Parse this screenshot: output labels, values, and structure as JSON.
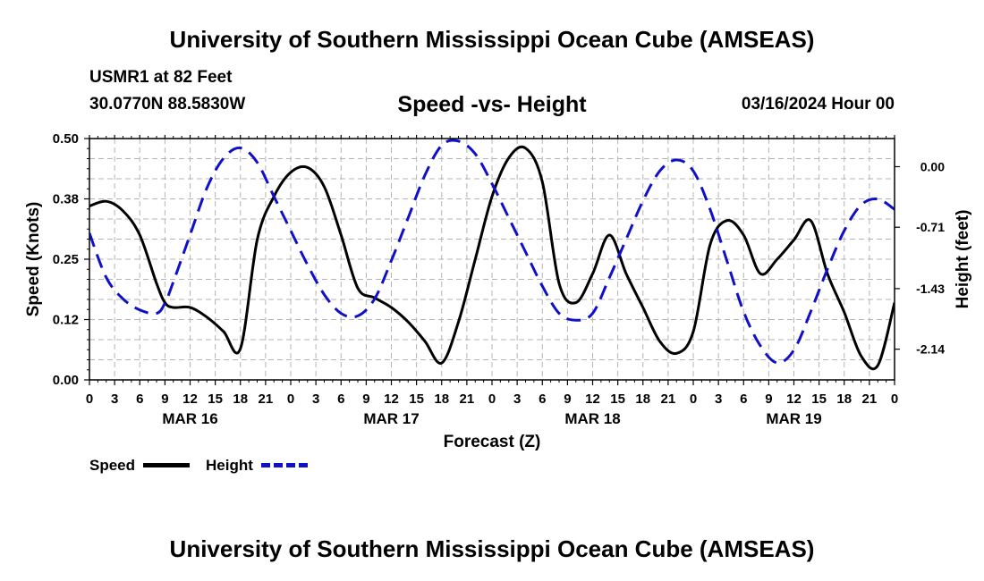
{
  "page": {
    "title_top": "University of Southern Mississippi Ocean Cube (AMSEAS)",
    "title_bottom": "University of Southern Mississippi Ocean Cube (AMSEAS)",
    "station": "USMR1 at 82 Feet",
    "coords": "30.0770N  88.5830W",
    "date": "03/16/2024 Hour 00"
  },
  "legend": {
    "speed_label": "Speed",
    "height_label": "Height"
  },
  "colors": {
    "speed": "#000000",
    "height": "#1010c8"
  },
  "chart_data": {
    "type": "line",
    "title": "Speed -vs- Height",
    "xlabel": "Forecast (Z)",
    "ylabel": "Speed (Knots)",
    "y2label": "Height (feet)",
    "xlim": [
      0,
      96
    ],
    "ylim": [
      0,
      0.5
    ],
    "y2lim": [
      -2.5,
      0.33
    ],
    "grid": true,
    "x_tick_labels": [
      "0",
      "3",
      "6",
      "9",
      "12",
      "15",
      "18",
      "21",
      "0",
      "3",
      "6",
      "9",
      "12",
      "15",
      "18",
      "21",
      "0",
      "3",
      "6",
      "9",
      "12",
      "15",
      "18",
      "21",
      "0",
      "3",
      "6",
      "9",
      "12",
      "15",
      "18",
      "21",
      "0"
    ],
    "date_labels": [
      {
        "hour": 12,
        "label": "MAR 16"
      },
      {
        "hour": 36,
        "label": "MAR 17"
      },
      {
        "hour": 60,
        "label": "MAR 18"
      },
      {
        "hour": 84,
        "label": "MAR 19"
      }
    ],
    "y_tick_labels": [
      "0.00",
      "0.12",
      "0.25",
      "0.38",
      "0.50"
    ],
    "y_tick_values": [
      0,
      0.125,
      0.25,
      0.375,
      0.5
    ],
    "y2_tick_labels": [
      "0.00",
      "-0.71",
      "-1.43",
      "-2.14"
    ],
    "y2_tick_values": [
      0,
      -0.71,
      -1.43,
      -2.14
    ],
    "series": [
      {
        "name": "Speed",
        "axis": "left",
        "x": [
          0,
          2,
          4,
          6,
          8,
          9,
          10,
          12,
          14,
          16,
          18,
          20,
          22,
          24,
          26,
          28,
          30,
          32,
          34,
          36,
          38,
          40,
          42,
          44,
          46,
          48,
          50,
          52,
          54,
          56,
          58,
          60,
          62,
          64,
          66,
          68,
          70,
          72,
          74,
          76,
          78,
          80,
          82,
          84,
          86,
          88,
          90,
          92,
          94,
          96
        ],
        "values": [
          0.36,
          0.37,
          0.35,
          0.3,
          0.2,
          0.16,
          0.15,
          0.15,
          0.13,
          0.1,
          0.065,
          0.29,
          0.38,
          0.43,
          0.44,
          0.4,
          0.3,
          0.19,
          0.17,
          0.15,
          0.12,
          0.08,
          0.035,
          0.12,
          0.25,
          0.38,
          0.46,
          0.48,
          0.41,
          0.2,
          0.16,
          0.22,
          0.3,
          0.22,
          0.15,
          0.08,
          0.055,
          0.1,
          0.28,
          0.33,
          0.3,
          0.22,
          0.25,
          0.29,
          0.33,
          0.22,
          0.14,
          0.05,
          0.03,
          0.16
        ]
      },
      {
        "name": "Height",
        "axis": "right",
        "x": [
          0,
          2,
          4,
          6,
          8,
          9,
          10,
          12,
          14,
          16,
          18,
          20,
          22,
          24,
          26,
          28,
          30,
          32,
          34,
          36,
          38,
          40,
          42,
          44,
          46,
          48,
          50,
          52,
          54,
          56,
          58,
          60,
          62,
          64,
          66,
          68,
          70,
          72,
          74,
          76,
          78,
          80,
          82,
          84,
          86,
          88,
          90,
          92,
          94,
          96
        ],
        "values": [
          -0.78,
          -1.3,
          -1.55,
          -1.68,
          -1.72,
          -1.6,
          -1.35,
          -0.8,
          -0.25,
          0.1,
          0.22,
          0.05,
          -0.35,
          -0.75,
          -1.15,
          -1.5,
          -1.72,
          -1.75,
          -1.55,
          -1.1,
          -0.6,
          -0.1,
          0.25,
          0.3,
          0.15,
          -0.2,
          -0.6,
          -1.0,
          -1.4,
          -1.72,
          -1.8,
          -1.72,
          -1.3,
          -0.85,
          -0.4,
          -0.05,
          0.08,
          -0.05,
          -0.5,
          -1.1,
          -1.7,
          -2.1,
          -2.3,
          -2.15,
          -1.7,
          -1.2,
          -0.75,
          -0.45,
          -0.38,
          -0.5
        ]
      }
    ]
  }
}
